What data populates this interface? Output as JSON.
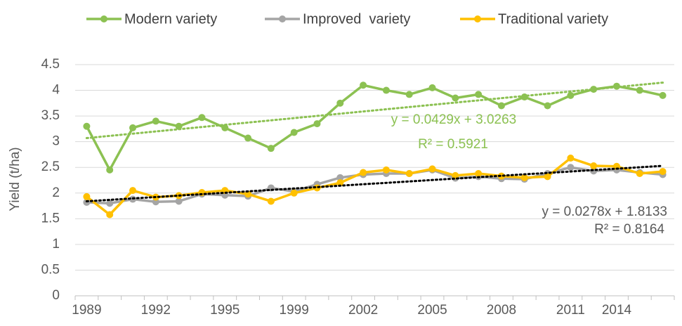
{
  "chart_data": {
    "type": "line",
    "y_label": "Yield (t/ha)",
    "categories": [
      "1989",
      null,
      null,
      "1992",
      null,
      null,
      "1995",
      null,
      null,
      "1999",
      null,
      null,
      "2002",
      null,
      null,
      "2005",
      null,
      null,
      "2008",
      null,
      null,
      "2011",
      null,
      "2014",
      null,
      null
    ],
    "series": [
      {
        "name": "Modern variety",
        "color": "#8cc152",
        "values": [
          3.3,
          2.45,
          3.27,
          3.4,
          3.3,
          3.47,
          3.27,
          3.07,
          2.87,
          3.18,
          3.35,
          3.75,
          4.1,
          4.0,
          3.92,
          4.05,
          3.85,
          3.92,
          3.7,
          3.87,
          3.7,
          3.9,
          4.02,
          4.08,
          4.0,
          3.9
        ]
      },
      {
        "name": "Improved  variety",
        "color": "#a5a5a5",
        "values": [
          1.82,
          1.8,
          1.88,
          1.83,
          1.84,
          1.98,
          1.96,
          1.94,
          2.1,
          2.03,
          2.17,
          2.3,
          2.36,
          2.38,
          2.38,
          2.45,
          2.29,
          2.32,
          2.28,
          2.27,
          2.38,
          2.5,
          2.43,
          2.45,
          2.4,
          2.36
        ]
      },
      {
        "name": "Traditional variety",
        "color": "#ffc000",
        "values": [
          1.93,
          1.58,
          2.05,
          1.92,
          1.95,
          2.01,
          2.05,
          1.98,
          1.84,
          2.0,
          2.1,
          2.2,
          2.4,
          2.45,
          2.38,
          2.47,
          2.34,
          2.38,
          2.33,
          2.3,
          2.32,
          2.68,
          2.53,
          2.52,
          2.38,
          2.42
        ]
      }
    ],
    "trendlines": [
      {
        "color": "#8cc152",
        "values": [
          3.07,
          4.15
        ],
        "equation": "y = 0.0429x + 3.0263",
        "r_squared": "R² = 0.5921"
      },
      {
        "color": "#000000",
        "values": [
          1.84,
          2.53
        ],
        "equation": "y = 0.0278x + 1.8133",
        "r_squared": "R² = 0.8164"
      }
    ],
    "ylim": [
      0,
      4.5
    ],
    "yticks": [
      0,
      0.5,
      1,
      1.5,
      2,
      2.5,
      3,
      3.5,
      4,
      4.5
    ],
    "grid": true,
    "legend": "top"
  }
}
